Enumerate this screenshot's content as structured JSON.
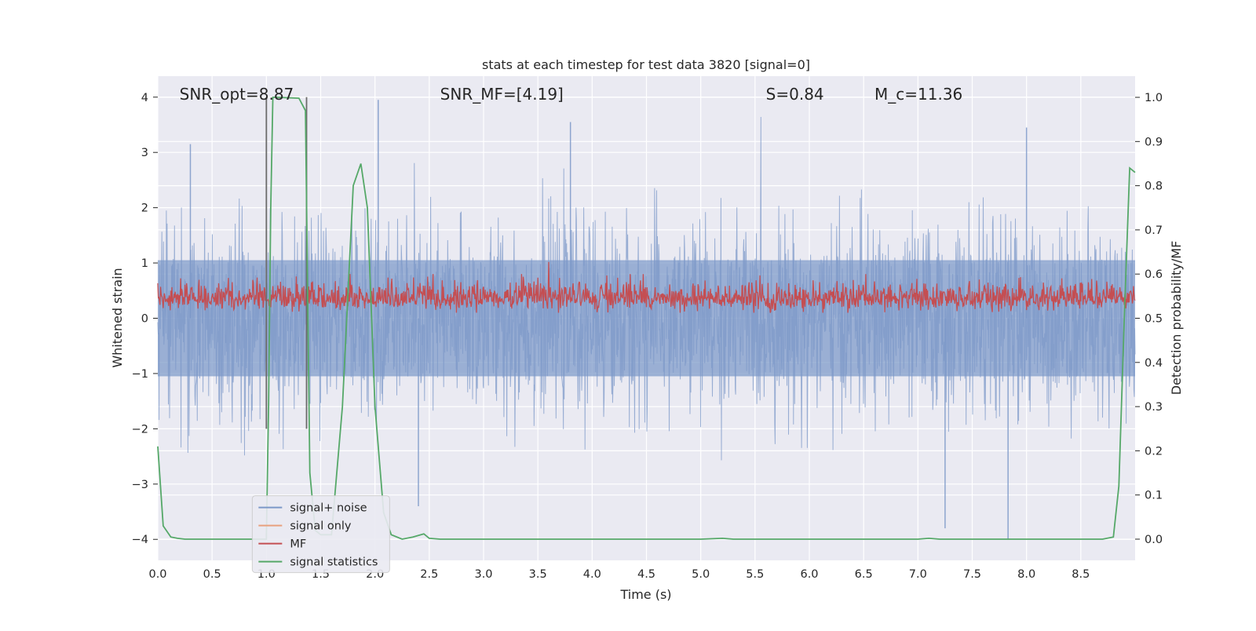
{
  "chart_data": {
    "type": "line",
    "title": "stats at each timestep for test data 3820 [signal=0]",
    "xlabel": "Time (s)",
    "ylabel_left": "Whitened strain",
    "ylabel_right": "Detection probability/MF",
    "xlim": [
      0.0,
      9.0
    ],
    "ylim_left": [
      -4.38,
      4.38
    ],
    "ylim_right": [
      -0.048,
      1.048
    ],
    "grid": true,
    "x_ticks": [
      "0.0",
      "0.5",
      "1.0",
      "1.5",
      "2.0",
      "2.5",
      "3.0",
      "3.5",
      "4.0",
      "4.5",
      "5.0",
      "5.5",
      "6.0",
      "6.5",
      "7.0",
      "7.5",
      "8.0",
      "8.5"
    ],
    "x_tick_values": [
      0.0,
      0.5,
      1.0,
      1.5,
      2.0,
      2.5,
      3.0,
      3.5,
      4.0,
      4.5,
      5.0,
      5.5,
      6.0,
      6.5,
      7.0,
      7.5,
      8.0,
      8.5
    ],
    "y_left_ticks": [
      "−4",
      "−3",
      "−2",
      "−1",
      "0",
      "1",
      "2",
      "3",
      "4"
    ],
    "y_left_tick_values": [
      -4,
      -3,
      -2,
      -1,
      0,
      1,
      2,
      3,
      4
    ],
    "y_right_ticks": [
      "0.0",
      "0.1",
      "0.2",
      "0.3",
      "0.4",
      "0.5",
      "0.6",
      "0.7",
      "0.8",
      "0.9",
      "1.0"
    ],
    "y_right_tick_values": [
      0.0,
      0.1,
      0.2,
      0.3,
      0.4,
      0.5,
      0.6,
      0.7,
      0.8,
      0.9,
      1.0
    ],
    "annotations": [
      {
        "text": "SNR_opt=8.87",
        "x": 0.2,
        "y": 4.0
      },
      {
        "text": "SNR_MF=[4.19]",
        "x": 2.6,
        "y": 4.0
      },
      {
        "text": "S=0.84",
        "x": 5.6,
        "y": 4.0
      },
      {
        "text": "M_c=11.36",
        "x": 6.6,
        "y": 4.0
      }
    ],
    "vertical_markers": [
      {
        "x": 1.0,
        "y_from": -2.0,
        "y_to": 4.0
      },
      {
        "x": 1.37,
        "y_from": -2.0,
        "y_to": 4.0
      }
    ],
    "legend": {
      "location": "lower-left",
      "entries": [
        {
          "label": "signal+ noise",
          "color": "#7c98c8"
        },
        {
          "label": "signal only",
          "color": "#e8a07e"
        },
        {
          "label": "MF",
          "color": "#c44e52"
        },
        {
          "label": "signal statistics",
          "color": "#55a868"
        }
      ]
    },
    "series": [
      {
        "name": "signal+ noise",
        "axis": "left",
        "color": "#7c98c8",
        "description": "dense whitened strain noise band",
        "envelope_typical": [
          -1.7,
          1.7
        ],
        "extremes": [
          {
            "x": 2.03,
            "y": 3.95
          },
          {
            "x": 0.3,
            "y": 3.15
          },
          {
            "x": 3.8,
            "y": 3.55
          },
          {
            "x": 8.0,
            "y": 3.45
          },
          {
            "x": 7.25,
            "y": -3.8
          },
          {
            "x": 7.83,
            "y": -4.0
          },
          {
            "x": 2.4,
            "y": -3.4
          }
        ]
      },
      {
        "name": "signal only",
        "axis": "left",
        "color": "#e8a07e",
        "values": []
      },
      {
        "name": "MF",
        "axis": "left",
        "color": "#c44e52",
        "description": "matched filter output band",
        "band": [
          0.15,
          0.75
        ],
        "peak": {
          "x": 3.6,
          "y": 1.02
        }
      },
      {
        "name": "signal statistics",
        "axis": "right",
        "color": "#55a868",
        "x": [
          0.0,
          0.05,
          0.12,
          0.18,
          0.25,
          0.5,
          1.0,
          1.02,
          1.04,
          1.06,
          1.1,
          1.3,
          1.36,
          1.4,
          1.45,
          1.5,
          1.6,
          1.7,
          1.8,
          1.87,
          1.93,
          2.0,
          2.08,
          2.15,
          2.25,
          2.35,
          2.45,
          2.5,
          2.6,
          3.0,
          4.0,
          5.0,
          5.2,
          5.3,
          5.4,
          6.0,
          7.0,
          7.1,
          7.2,
          7.5,
          8.0,
          8.5,
          8.7,
          8.8,
          8.85,
          8.9,
          8.95,
          9.0
        ],
        "y": [
          0.21,
          0.03,
          0.005,
          0.002,
          0.0,
          0.0,
          0.0,
          0.3,
          0.75,
          1.0,
          1.0,
          0.998,
          0.97,
          0.15,
          0.02,
          0.01,
          0.01,
          0.3,
          0.8,
          0.85,
          0.75,
          0.3,
          0.06,
          0.01,
          0.0,
          0.005,
          0.012,
          0.002,
          0.0,
          0.0,
          0.0,
          0.0,
          0.002,
          0.0,
          0.0,
          0.0,
          0.0,
          0.002,
          0.0,
          0.0,
          0.0,
          0.0,
          0.0,
          0.005,
          0.12,
          0.5,
          0.84,
          0.83
        ]
      }
    ]
  }
}
